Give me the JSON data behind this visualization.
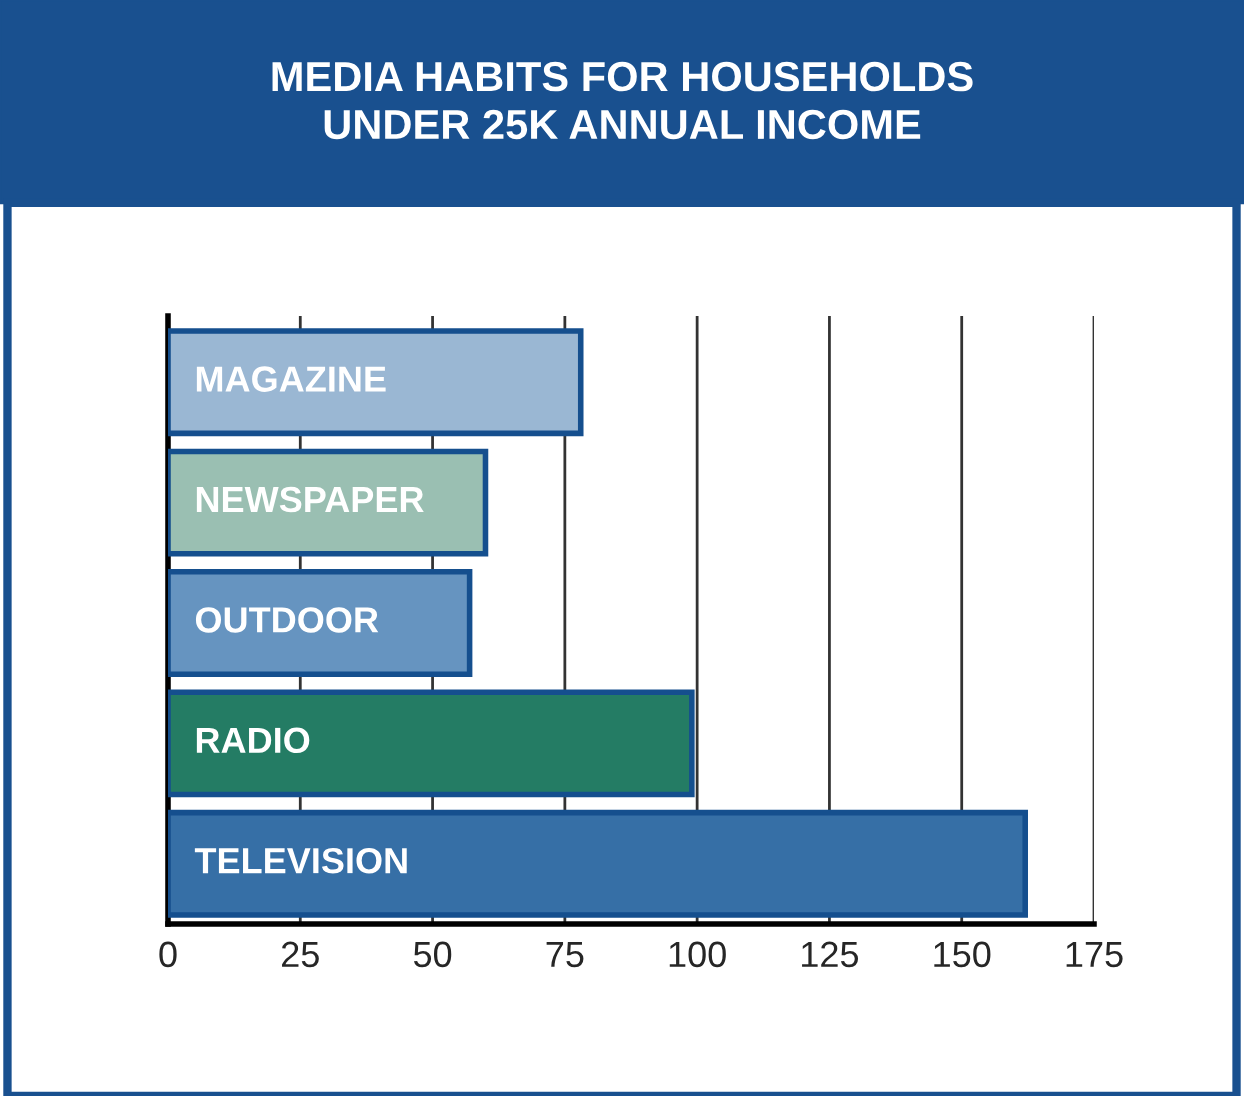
{
  "chart_data": {
    "type": "bar",
    "orientation": "horizontal",
    "title": "MEDIA HABITS FOR HOUSEHOLDS\nUNDER 25K ANNUAL INCOME",
    "categories": [
      "MAGAZINE",
      "NEWSPAPER",
      "OUTDOOR",
      "RADIO",
      "TELEVISION"
    ],
    "values": [
      78,
      60,
      57,
      99,
      162
    ],
    "colors": [
      "#9ab7d3",
      "#9abfb2",
      "#6694c0",
      "#247c64",
      "#366fa6"
    ],
    "xlim": [
      0,
      175
    ],
    "xticks": [
      0,
      25,
      50,
      75,
      100,
      125,
      150,
      175
    ],
    "grid": "x"
  }
}
